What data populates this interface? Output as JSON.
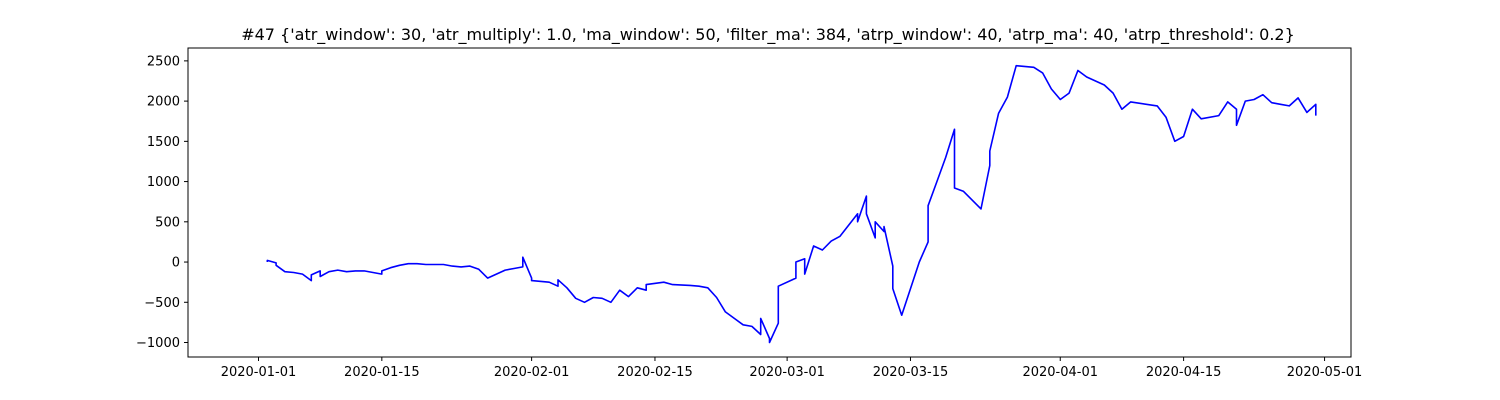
{
  "chart_data": {
    "type": "line",
    "title": "#47 {'atr_window': 30, 'atr_multiply': 1.0, 'ma_window': 50, 'filter_ma': 384, 'atrp_window': 40, 'atrp_ma': 40, 'atrp_threshold': 0.2}",
    "xlabel": "",
    "ylabel": "",
    "xlim": [
      "2019-12-24",
      "2020-05-04"
    ],
    "ylim": [
      -1180,
      2660
    ],
    "x_ticks": [
      "2020-01-01",
      "2020-01-15",
      "2020-02-01",
      "2020-02-15",
      "2020-03-01",
      "2020-03-15",
      "2020-04-01",
      "2020-04-15",
      "2020-05-01"
    ],
    "y_ticks": [
      -1000,
      -500,
      0,
      500,
      1000,
      1500,
      2000,
      2500
    ],
    "grid": false,
    "legend": "none",
    "series": [
      {
        "color": "#0000ff",
        "points": [
          [
            "2020-01-02",
            0
          ],
          [
            "2020-01-02",
            20
          ],
          [
            "2020-01-03",
            -10
          ],
          [
            "2020-01-03",
            -40
          ],
          [
            "2020-01-04",
            -120
          ],
          [
            "2020-01-05",
            -130
          ],
          [
            "2020-01-06",
            -150
          ],
          [
            "2020-01-07",
            -230
          ],
          [
            "2020-01-07",
            -160
          ],
          [
            "2020-01-08",
            -110
          ],
          [
            "2020-01-08",
            -180
          ],
          [
            "2020-01-09",
            -120
          ],
          [
            "2020-01-10",
            -100
          ],
          [
            "2020-01-11",
            -120
          ],
          [
            "2020-01-12",
            -110
          ],
          [
            "2020-01-13",
            -110
          ],
          [
            "2020-01-14",
            -130
          ],
          [
            "2020-01-15",
            -150
          ],
          [
            "2020-01-15",
            -110
          ],
          [
            "2020-01-16",
            -70
          ],
          [
            "2020-01-17",
            -40
          ],
          [
            "2020-01-18",
            -20
          ],
          [
            "2020-01-19",
            -20
          ],
          [
            "2020-01-20",
            -30
          ],
          [
            "2020-01-22",
            -30
          ],
          [
            "2020-01-23",
            -50
          ],
          [
            "2020-01-24",
            -60
          ],
          [
            "2020-01-25",
            -50
          ],
          [
            "2020-01-26",
            -90
          ],
          [
            "2020-01-27",
            -200
          ],
          [
            "2020-01-28",
            -150
          ],
          [
            "2020-01-29",
            -100
          ],
          [
            "2020-01-30",
            -80
          ],
          [
            "2020-01-31",
            -60
          ],
          [
            "2020-01-31",
            60
          ],
          [
            "2020-02-01",
            -200
          ],
          [
            "2020-02-01",
            -230
          ],
          [
            "2020-02-03",
            -250
          ],
          [
            "2020-02-04",
            -300
          ],
          [
            "2020-02-04",
            -220
          ],
          [
            "2020-02-05",
            -320
          ],
          [
            "2020-02-06",
            -450
          ],
          [
            "2020-02-07",
            -500
          ],
          [
            "2020-02-08",
            -440
          ],
          [
            "2020-02-09",
            -450
          ],
          [
            "2020-02-10",
            -500
          ],
          [
            "2020-02-11",
            -350
          ],
          [
            "2020-02-12",
            -430
          ],
          [
            "2020-02-13",
            -320
          ],
          [
            "2020-02-14",
            -350
          ],
          [
            "2020-02-14",
            -280
          ],
          [
            "2020-02-16",
            -250
          ],
          [
            "2020-02-17",
            -280
          ],
          [
            "2020-02-19",
            -290
          ],
          [
            "2020-02-20",
            -300
          ],
          [
            "2020-02-21",
            -320
          ],
          [
            "2020-02-22",
            -440
          ],
          [
            "2020-02-23",
            -620
          ],
          [
            "2020-02-24",
            -700
          ],
          [
            "2020-02-25",
            -780
          ],
          [
            "2020-02-26",
            -800
          ],
          [
            "2020-02-27",
            -900
          ],
          [
            "2020-02-27",
            -700
          ],
          [
            "2020-02-28",
            -950
          ],
          [
            "2020-02-28",
            -1000
          ],
          [
            "2020-02-29",
            -760
          ],
          [
            "2020-02-29",
            -300
          ],
          [
            "2020-03-02",
            -200
          ],
          [
            "2020-03-02",
            0
          ],
          [
            "2020-03-03",
            40
          ],
          [
            "2020-03-03",
            -150
          ],
          [
            "2020-03-04",
            200
          ],
          [
            "2020-03-05",
            150
          ],
          [
            "2020-03-06",
            260
          ],
          [
            "2020-03-07",
            320
          ],
          [
            "2020-03-09",
            600
          ],
          [
            "2020-03-09",
            500
          ],
          [
            "2020-03-10",
            820
          ],
          [
            "2020-03-10",
            600
          ],
          [
            "2020-03-11",
            300
          ],
          [
            "2020-03-11",
            500
          ],
          [
            "2020-03-12",
            380
          ],
          [
            "2020-03-12",
            440
          ],
          [
            "2020-03-13",
            -50
          ],
          [
            "2020-03-13",
            -330
          ],
          [
            "2020-03-14",
            -660
          ],
          [
            "2020-03-16",
            0
          ],
          [
            "2020-03-17",
            250
          ],
          [
            "2020-03-17",
            700
          ],
          [
            "2020-03-18",
            1000
          ],
          [
            "2020-03-19",
            1300
          ],
          [
            "2020-03-20",
            1650
          ],
          [
            "2020-03-20",
            920
          ],
          [
            "2020-03-21",
            880
          ],
          [
            "2020-03-23",
            660
          ],
          [
            "2020-03-24",
            1200
          ],
          [
            "2020-03-24",
            1380
          ],
          [
            "2020-03-25",
            1850
          ],
          [
            "2020-03-26",
            2050
          ],
          [
            "2020-03-27",
            2440
          ],
          [
            "2020-03-29",
            2420
          ],
          [
            "2020-03-30",
            2350
          ],
          [
            "2020-03-31",
            2150
          ],
          [
            "2020-04-01",
            2020
          ],
          [
            "2020-04-02",
            2100
          ],
          [
            "2020-04-03",
            2380
          ],
          [
            "2020-04-04",
            2300
          ],
          [
            "2020-04-06",
            2200
          ],
          [
            "2020-04-07",
            2100
          ],
          [
            "2020-04-08",
            1900
          ],
          [
            "2020-04-09",
            1990
          ],
          [
            "2020-04-12",
            1940
          ],
          [
            "2020-04-13",
            1800
          ],
          [
            "2020-04-14",
            1500
          ],
          [
            "2020-04-15",
            1560
          ],
          [
            "2020-04-16",
            1900
          ],
          [
            "2020-04-17",
            1780
          ],
          [
            "2020-04-19",
            1820
          ],
          [
            "2020-04-20",
            1990
          ],
          [
            "2020-04-21",
            1900
          ],
          [
            "2020-04-21",
            1700
          ],
          [
            "2020-04-22",
            2000
          ],
          [
            "2020-04-23",
            2020
          ],
          [
            "2020-04-24",
            2080
          ],
          [
            "2020-04-25",
            1980
          ],
          [
            "2020-04-26",
            1960
          ],
          [
            "2020-04-27",
            1940
          ],
          [
            "2020-04-28",
            2040
          ],
          [
            "2020-04-29",
            1860
          ],
          [
            "2020-04-30",
            1960
          ],
          [
            "2020-04-30",
            1820
          ]
        ]
      }
    ]
  }
}
